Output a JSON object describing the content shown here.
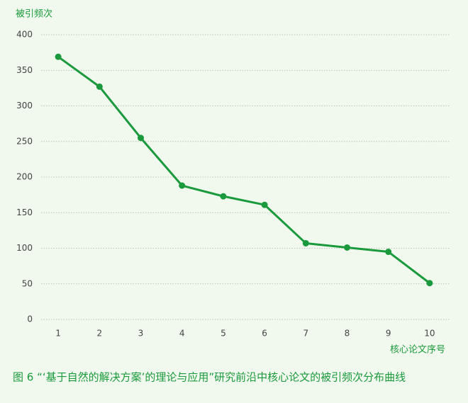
{
  "chart_data": {
    "type": "line",
    "y_label": "被引频次",
    "x_label": "核心论文序号",
    "caption": "图 6  “‘基于自然的解决方案’的理论与应用”研究前沿中核心论文的被引频次分布曲线",
    "categories": [
      "1",
      "2",
      "3",
      "4",
      "5",
      "6",
      "7",
      "8",
      "9",
      "10"
    ],
    "values": [
      369,
      327,
      255,
      188,
      173,
      161,
      107,
      101,
      95,
      51
    ],
    "color": "#1a9a3c",
    "ylim": [
      0,
      400
    ],
    "yticks": [
      0,
      50,
      100,
      150,
      200,
      250,
      300,
      350,
      400
    ],
    "grid": true
  }
}
